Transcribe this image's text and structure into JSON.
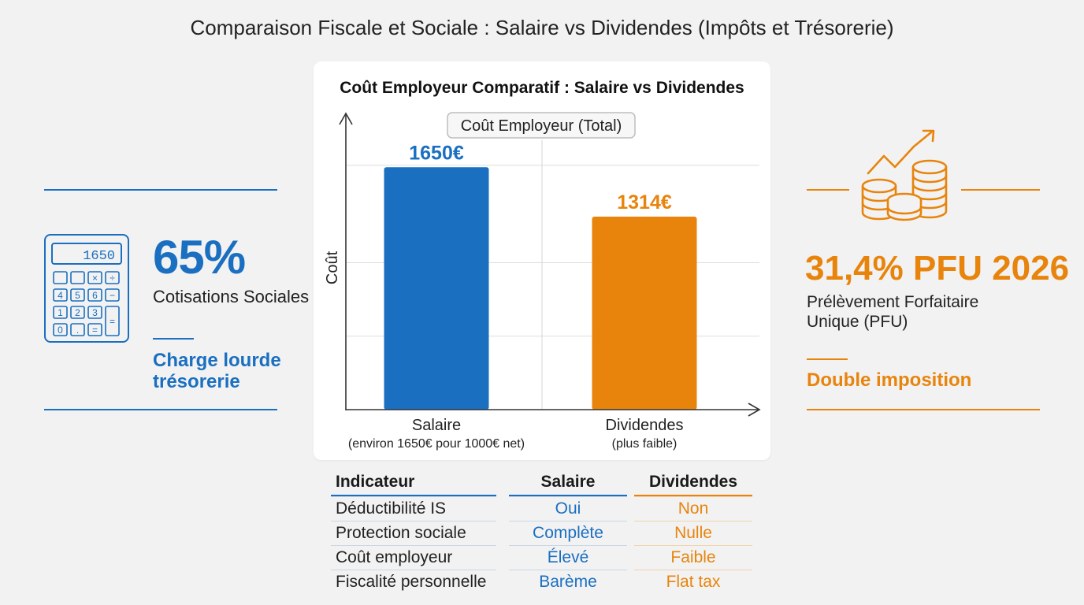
{
  "page_title": "Comparaison Fiscale et Sociale : Salaire vs Dividendes (Impôts et Trésorerie)",
  "left_panel": {
    "calculator_display": "1650",
    "calculator_keys": [
      "",
      "",
      "×",
      "÷",
      "4",
      "5",
      "6",
      "−",
      "1",
      "2",
      "3",
      "=",
      "0",
      ".",
      "="
    ],
    "percent": "65%",
    "label": "Cotisations Sociales",
    "note_line1": "Charge lourde",
    "note_line2": "trésorerie"
  },
  "right_panel": {
    "headline": "31,4% PFU 2026",
    "label_line1": "Prélèvement Forfaitaire",
    "label_line2": "Unique (PFU)",
    "note": "Double imposition"
  },
  "chart_data": {
    "type": "bar",
    "title": "Coût Employeur Comparatif : Salaire vs Dividendes",
    "legend_box": "Coût Employeur (Total)",
    "ylabel": "Coût",
    "categories": [
      "Salaire",
      "Dividendes"
    ],
    "category_notes": [
      "(environ 1650€ pour 1000€ net)",
      "(plus faible)"
    ],
    "values": [
      1650,
      1314
    ],
    "value_labels": [
      "1650€",
      "1314€"
    ],
    "ylim": [
      0,
      2000
    ],
    "grid": true,
    "colors": [
      "#1a6fc1",
      "#e8840c"
    ]
  },
  "table": {
    "headers": [
      "Indicateur",
      "Salaire",
      "Dividendes"
    ],
    "rows": [
      [
        "Déductibilité IS",
        "Oui",
        "Non"
      ],
      [
        "Protection sociale",
        "Complète",
        "Nulle"
      ],
      [
        "Coût employeur",
        "Élevé",
        "Faible"
      ],
      [
        "Fiscalité personnelle",
        "Barème",
        "Flat tax"
      ]
    ]
  },
  "colors": {
    "blue": "#1a6fc1",
    "orange": "#e8840c"
  }
}
